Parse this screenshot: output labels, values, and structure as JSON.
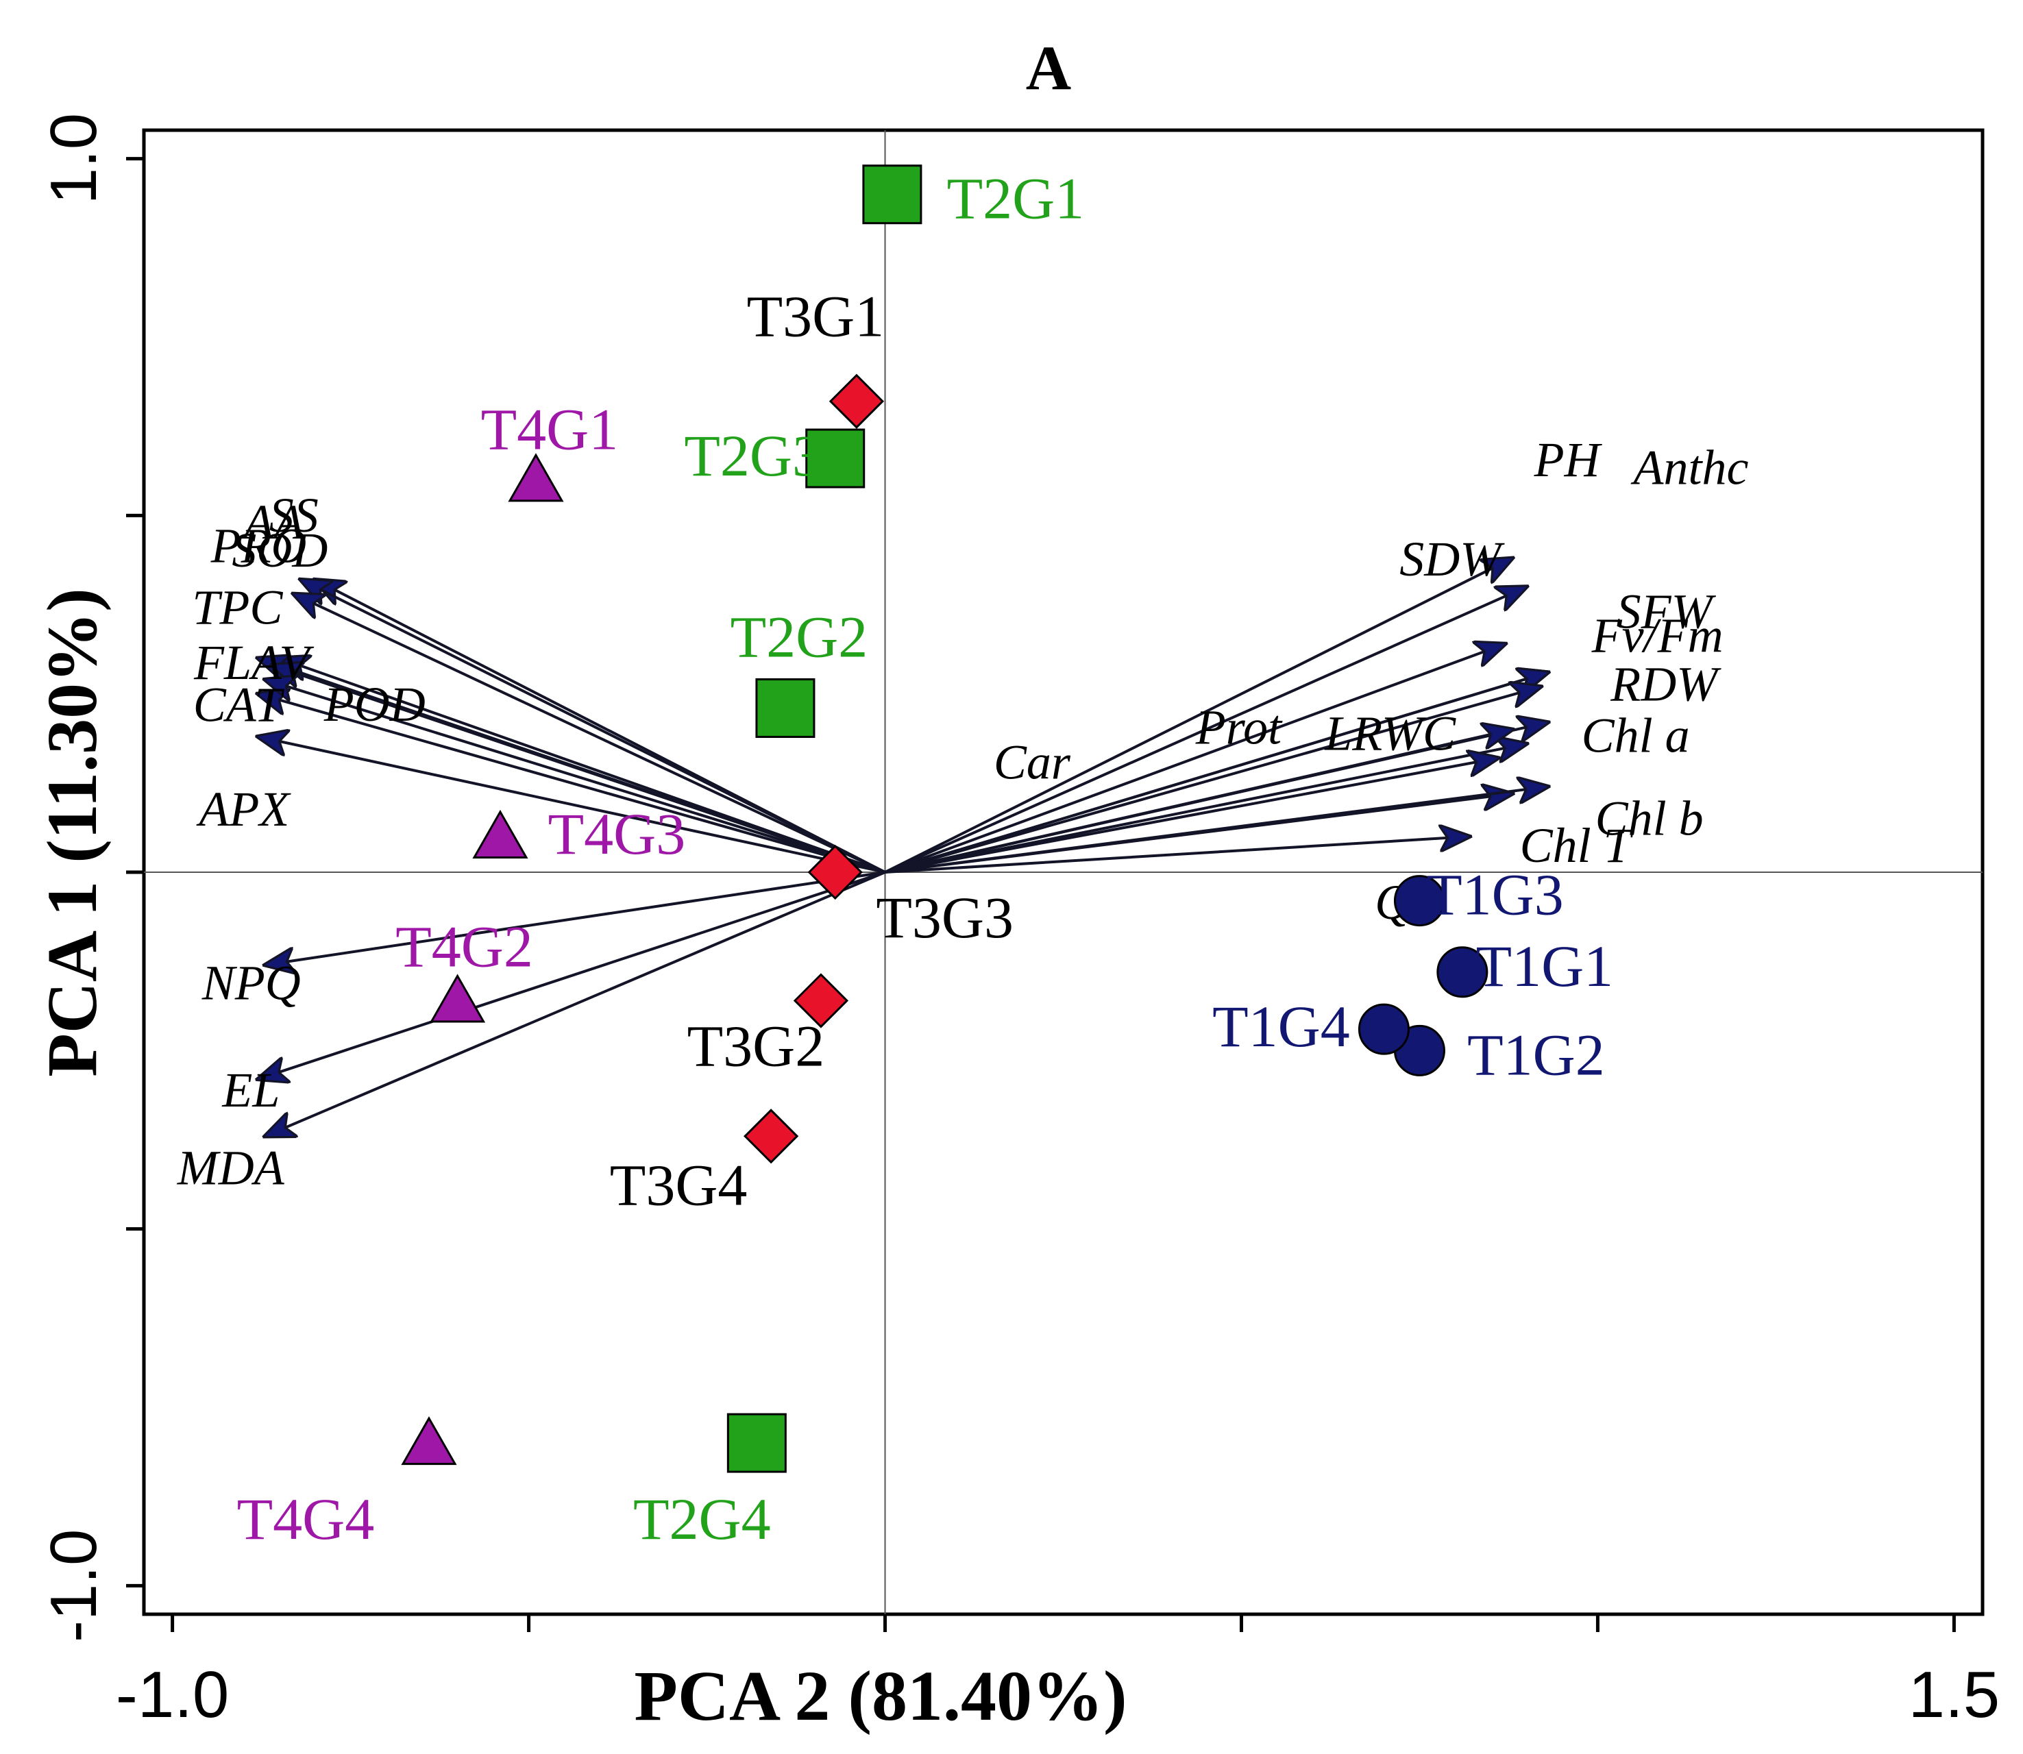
{
  "chart_data": {
    "type": "scatter",
    "title": "A",
    "xlabel": "PCA 2 (81.40%)",
    "ylabel": "PCA 1 (11.30%)",
    "xlim": [
      -1.04,
      1.54
    ],
    "ylim": [
      -1.04,
      1.04
    ],
    "x_tick_labels": [
      {
        "value": -1.0,
        "label": "-1.0"
      },
      {
        "value": 1.5,
        "label": "1.5"
      }
    ],
    "x_tick_values": [
      -1.0,
      -0.5,
      0.0,
      0.5,
      1.0,
      1.5
    ],
    "y_tick_labels": [
      {
        "value": 1.0,
        "label": "1.0"
      },
      {
        "value": -1.0,
        "label": "-1.0"
      }
    ],
    "y_tick_values": [
      1.0,
      0.5,
      0.0,
      -0.5,
      -1.0
    ],
    "reference_lines": {
      "x": 0.0,
      "y": 0.0
    },
    "grid": false,
    "colors": {
      "T1": "#121772",
      "T2": "#22a21a",
      "T3": "#e8132b",
      "T4": "#9e17a6",
      "arrow": "#141428",
      "arrowhead": "#121772"
    },
    "series": [
      {
        "group": "T1",
        "marker": "circle",
        "color": "#121772",
        "label_color": "#121772",
        "points": [
          {
            "label": "T1G1",
            "x": 0.81,
            "y": -0.14
          },
          {
            "label": "T1G2",
            "x": 0.75,
            "y": -0.25
          },
          {
            "label": "T1G3",
            "x": 0.75,
            "y": -0.04
          },
          {
            "label": "T1G4",
            "x": 0.7,
            "y": -0.22
          }
        ]
      },
      {
        "group": "T2",
        "marker": "square",
        "color": "#22a21a",
        "label_color": "#22a21a",
        "points": [
          {
            "label": "T2G1",
            "x": 0.01,
            "y": 0.95
          },
          {
            "label": "T2G2",
            "x": -0.14,
            "y": 0.23
          },
          {
            "label": "T2G3",
            "x": -0.07,
            "y": 0.58
          },
          {
            "label": "T2G4",
            "x": -0.18,
            "y": -0.8
          }
        ]
      },
      {
        "group": "T3",
        "marker": "diamond",
        "color": "#e8132b",
        "label_color": "#000000",
        "points": [
          {
            "label": "T3G1",
            "x": -0.04,
            "y": 0.66
          },
          {
            "label": "T3G2",
            "x": -0.09,
            "y": -0.18
          },
          {
            "label": "T3G3",
            "x": -0.07,
            "y": 0.0
          },
          {
            "label": "T3G4",
            "x": -0.16,
            "y": -0.37
          }
        ]
      },
      {
        "group": "T4",
        "marker": "triangle",
        "color": "#9e17a6",
        "label_color": "#9e17a6",
        "points": [
          {
            "label": "T4G1",
            "x": -0.49,
            "y": 0.55
          },
          {
            "label": "T4G2",
            "x": -0.6,
            "y": -0.18
          },
          {
            "label": "T4G3",
            "x": -0.54,
            "y": 0.05
          },
          {
            "label": "T4G4",
            "x": -0.64,
            "y": -0.8
          }
        ]
      }
    ],
    "loadings": [
      {
        "variable": "AA",
        "x": -0.8,
        "y": 0.41
      },
      {
        "variable": "SS",
        "x": -0.82,
        "y": 0.41
      },
      {
        "variable": "PRO",
        "x": -0.85,
        "y": 0.3
      },
      {
        "variable": "SOD",
        "x": -0.83,
        "y": 0.39
      },
      {
        "variable": "TPC",
        "x": -0.88,
        "y": 0.3
      },
      {
        "variable": "FLAV",
        "x": -0.86,
        "y": 0.29
      },
      {
        "variable": "CAT",
        "x": -0.88,
        "y": 0.25
      },
      {
        "variable": "APX",
        "x": -0.88,
        "y": 0.19
      },
      {
        "variable": "POD",
        "x": -0.87,
        "y": 0.27
      },
      {
        "variable": "NPQ",
        "x": -0.87,
        "y": -0.13
      },
      {
        "variable": "EL",
        "x": -0.88,
        "y": -0.29
      },
      {
        "variable": "MDA",
        "x": -0.87,
        "y": -0.37
      },
      {
        "variable": "PH",
        "x": 0.88,
        "y": 0.44
      },
      {
        "variable": "Anthc",
        "x": 0.9,
        "y": 0.4
      },
      {
        "variable": "SDW",
        "x": 0.87,
        "y": 0.32
      },
      {
        "variable": "SFW",
        "x": 0.93,
        "y": 0.28
      },
      {
        "variable": "LRWC",
        "x": 0.93,
        "y": 0.21
      },
      {
        "variable": "Fv/Fm",
        "x": 0.93,
        "y": 0.28
      },
      {
        "variable": "Prot",
        "x": 0.9,
        "y": 0.18
      },
      {
        "variable": "RDW",
        "x": 0.92,
        "y": 0.26
      },
      {
        "variable": "Car",
        "x": 0.86,
        "y": 0.16
      },
      {
        "variable": "Chl a",
        "x": 0.88,
        "y": 0.2
      },
      {
        "variable": "Chl b",
        "x": 0.88,
        "y": 0.11
      },
      {
        "variable": "QP",
        "x": 0.82,
        "y": 0.05
      },
      {
        "variable": "Chl T",
        "x": 0.93,
        "y": 0.12
      }
    ]
  }
}
